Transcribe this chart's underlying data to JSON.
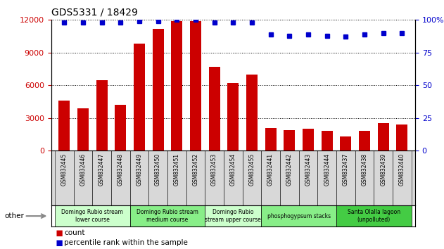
{
  "title": "GDS5331 / 18429",
  "samples": [
    "GSM832445",
    "GSM832446",
    "GSM832447",
    "GSM832448",
    "GSM832449",
    "GSM832450",
    "GSM832451",
    "GSM832452",
    "GSM832453",
    "GSM832454",
    "GSM832455",
    "GSM832441",
    "GSM832442",
    "GSM832443",
    "GSM832444",
    "GSM832437",
    "GSM832438",
    "GSM832439",
    "GSM832440"
  ],
  "counts": [
    4600,
    3900,
    6500,
    4200,
    9800,
    11200,
    11900,
    11900,
    7700,
    6200,
    7000,
    2100,
    1900,
    2000,
    1800,
    1300,
    1800,
    2500,
    2400
  ],
  "percentile": [
    98,
    98,
    98,
    98,
    99,
    99,
    100,
    100,
    98,
    98,
    98,
    89,
    88,
    89,
    88,
    87,
    89,
    90,
    90
  ],
  "bar_color": "#cc0000",
  "dot_color": "#0000cc",
  "ylim_left": [
    0,
    12000
  ],
  "ylim_right": [
    0,
    100
  ],
  "yticks_left": [
    0,
    3000,
    6000,
    9000,
    12000
  ],
  "yticks_right": [
    0,
    25,
    50,
    75,
    100
  ],
  "groups": [
    {
      "label": "Domingo Rubio stream\nlower course",
      "start": 0,
      "end": 4,
      "color": "#ccffcc"
    },
    {
      "label": "Domingo Rubio stream\nmedium course",
      "start": 4,
      "end": 8,
      "color": "#88ee88"
    },
    {
      "label": "Domingo Rubio\nstream upper course",
      "start": 8,
      "end": 11,
      "color": "#ccffcc"
    },
    {
      "label": "phosphogypsum stacks",
      "start": 11,
      "end": 15,
      "color": "#88ee88"
    },
    {
      "label": "Santa Olalla lagoon\n(unpolluted)",
      "start": 15,
      "end": 19,
      "color": "#44cc44"
    }
  ],
  "other_label": "other"
}
